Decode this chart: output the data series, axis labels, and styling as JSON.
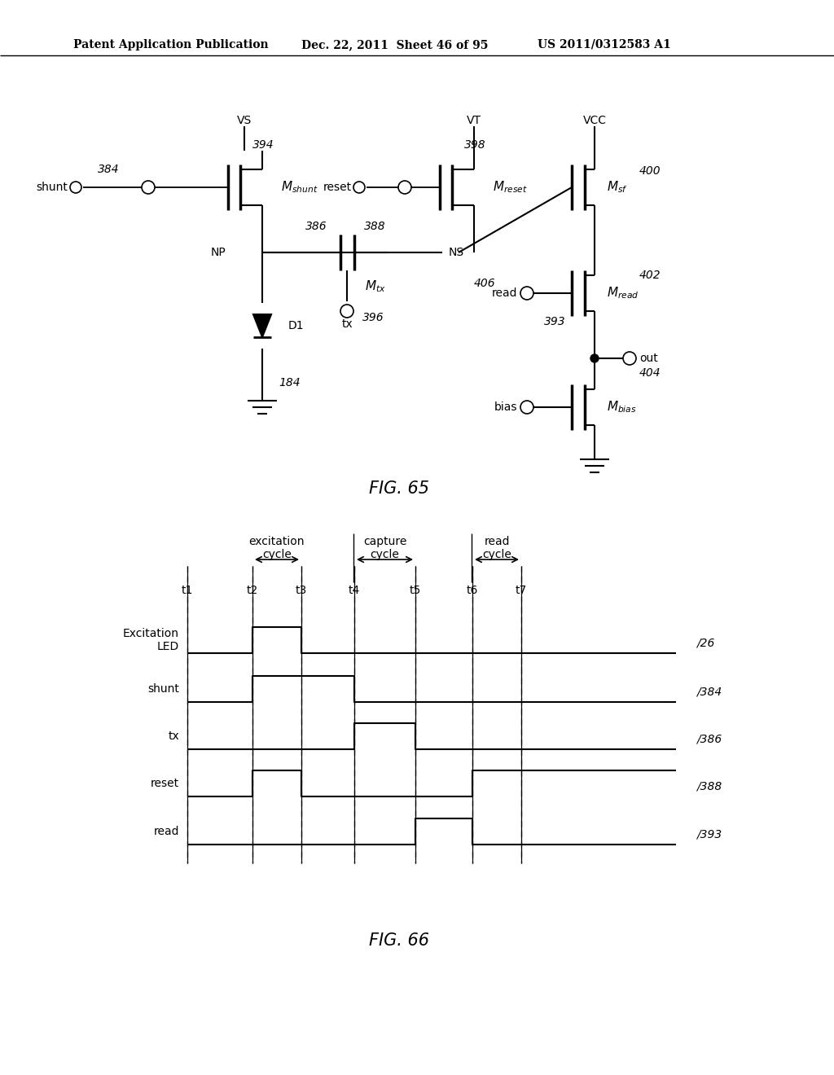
{
  "bg_color": "#ffffff",
  "header_left": "Patent Application Publication",
  "header_mid": "Dec. 22, 2011  Sheet 46 of 95",
  "header_right": "US 2011/0312583 A1",
  "fig65_label": "FIG. 65",
  "fig66_label": "FIG. 66",
  "timing_labels": [
    "Excitation\nLED",
    "shunt",
    "tx",
    "reset",
    "read"
  ],
  "timing_refs": [
    "26",
    "384",
    "386",
    "388",
    "393"
  ],
  "time_points": [
    "t1",
    "t2",
    "t3",
    "t4",
    "t5",
    "t6",
    "t7"
  ],
  "cycle_labels": [
    [
      "excitation",
      "cycle"
    ],
    [
      "capture",
      "cycle"
    ],
    [
      "read",
      "cycle"
    ]
  ]
}
